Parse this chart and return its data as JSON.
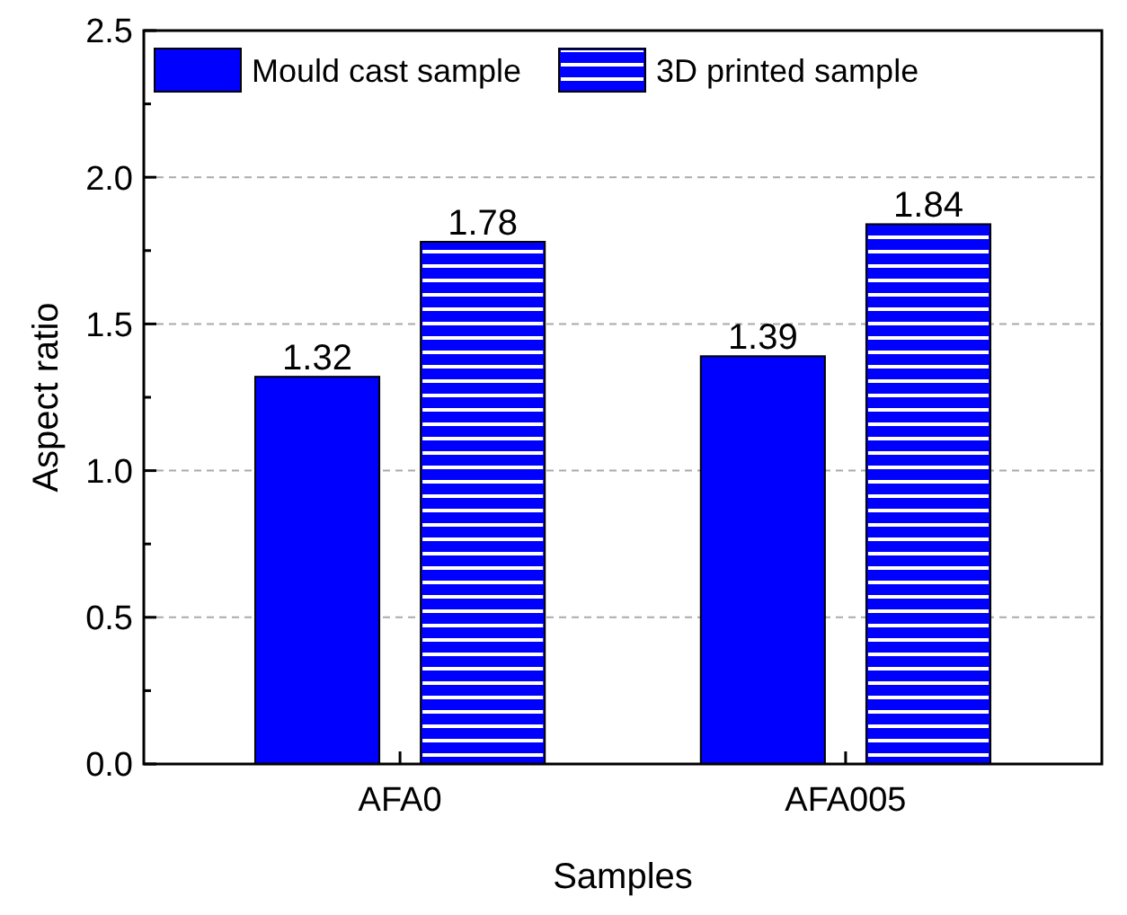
{
  "chart_data": {
    "type": "bar",
    "xlabel": "Samples",
    "ylabel": "Aspect ratio",
    "categories": [
      "AFA0",
      "AFA005"
    ],
    "series": [
      {
        "name": "Mould cast sample",
        "color": "#0000ff",
        "values": [
          1.32,
          1.39
        ]
      },
      {
        "name": "3D printed sample",
        "color": "#0000ff",
        "values": [
          1.78,
          1.84
        ]
      }
    ],
    "ylim": [
      0,
      2.5
    ],
    "yticks": [
      {
        "value": 0,
        "label": "0.0"
      },
      {
        "value": 0.25,
        "label": null
      },
      {
        "value": 0.5,
        "label": "0.5"
      },
      {
        "value": 0.75,
        "label": null
      },
      {
        "value": 1,
        "label": "1.0"
      },
      {
        "value": 1.25,
        "label": null
      },
      {
        "value": 1.5,
        "label": "1.5"
      },
      {
        "value": 1.75,
        "label": null
      },
      {
        "value": 2,
        "label": "2.0"
      },
      {
        "value": 2.25,
        "label": null
      },
      {
        "value": 2.5,
        "label": "2.5"
      }
    ],
    "grid": "y",
    "legend": "top",
    "data_labels": true
  }
}
